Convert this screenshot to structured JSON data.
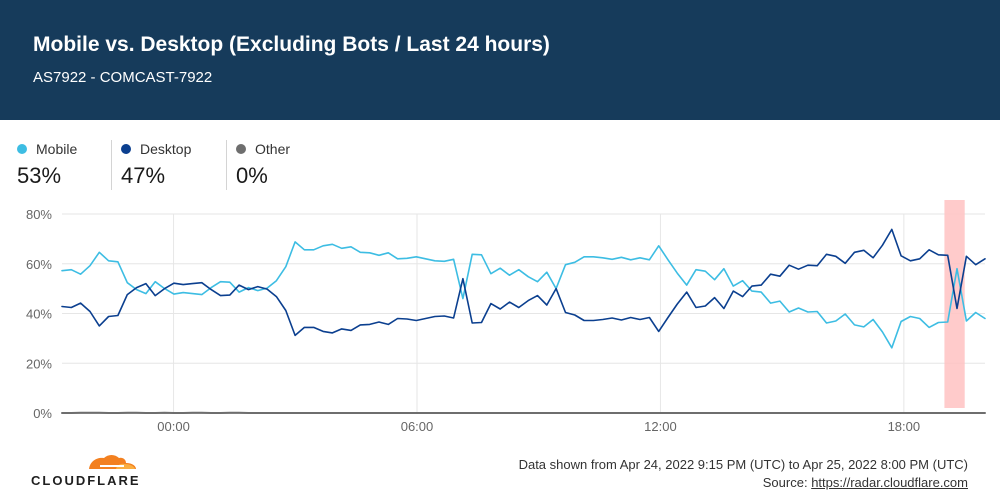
{
  "header": {
    "title": "Mobile vs. Desktop (Excluding Bots / Last 24 hours)",
    "subtitle": "AS7922 - COMCAST-7922"
  },
  "legend": [
    {
      "name": "Mobile",
      "value": "53%",
      "color": "#3dbde3"
    },
    {
      "name": "Desktop",
      "value": "47%",
      "color": "#0b3f8f"
    },
    {
      "name": "Other",
      "value": "0%",
      "color": "#6e6e6e"
    }
  ],
  "chart_data": {
    "type": "line",
    "x_tick_labels": [
      "00:00",
      "06:00",
      "12:00",
      "18:00"
    ],
    "x_tick_hours": [
      2.75,
      8.75,
      14.75,
      20.75
    ],
    "xlim_hours": [
      0,
      22.75
    ],
    "y_tick_labels": [
      "0%",
      "20%",
      "40%",
      "60%",
      "80%"
    ],
    "y_ticks": [
      0,
      20,
      40,
      60,
      80
    ],
    "ylim": [
      0,
      80
    ],
    "grid": true,
    "highlight_hours": [
      21.75,
      22.25
    ],
    "highlight_color": "#ffc2c2",
    "series": [
      {
        "name": "Mobile",
        "color": "#3dbde3",
        "values": [
          57.2,
          57.6,
          55.8,
          59.2,
          64.6,
          61.2,
          60.8,
          52.4,
          49.6,
          48.0,
          52.8,
          50.0,
          47.8,
          48.4,
          48.0,
          47.6,
          50.4,
          52.8,
          52.6,
          48.6,
          50.4,
          49.2,
          50.2,
          53.2,
          58.8,
          68.8,
          65.6,
          65.6,
          67.2,
          67.8,
          66.2,
          66.8,
          64.6,
          64.4,
          63.4,
          64.4,
          62.0,
          62.2,
          62.8,
          62.0,
          61.2,
          61.0,
          61.8,
          46.0,
          63.8,
          63.6,
          56.0,
          58.2,
          55.4,
          57.6,
          54.8,
          52.8,
          56.6,
          50.0,
          59.6,
          60.6,
          62.8,
          62.8,
          62.4,
          61.8,
          62.6,
          61.6,
          62.4,
          61.6,
          67.2,
          61.6,
          56.2,
          51.4,
          57.6,
          57.0,
          53.6,
          58.0,
          51.0,
          53.2,
          49.0,
          48.6,
          44.2,
          45.0,
          40.6,
          42.2,
          40.6,
          40.8,
          36.2,
          37.0,
          39.8,
          35.4,
          34.6,
          37.6,
          32.6,
          26.2,
          36.8,
          38.8,
          38.0,
          34.4,
          36.4,
          36.6,
          58.0,
          37.0,
          40.4,
          38.0
        ]
      },
      {
        "name": "Desktop",
        "color": "#0b3f8f",
        "values": [
          42.8,
          42.4,
          44.2,
          40.8,
          35.0,
          38.8,
          39.2,
          47.6,
          50.4,
          52.0,
          47.2,
          50.0,
          52.2,
          51.6,
          52.0,
          52.4,
          49.6,
          47.2,
          47.4,
          51.4,
          49.6,
          50.8,
          49.8,
          46.8,
          41.2,
          31.2,
          34.4,
          34.4,
          32.8,
          32.2,
          33.8,
          33.2,
          35.4,
          35.6,
          36.6,
          35.6,
          38.0,
          37.8,
          37.2,
          38.0,
          38.8,
          39.0,
          38.2,
          54.0,
          36.2,
          36.4,
          44.0,
          41.8,
          44.6,
          42.4,
          45.2,
          47.2,
          43.4,
          50.0,
          40.4,
          39.4,
          37.2,
          37.2,
          37.6,
          38.2,
          37.4,
          38.4,
          37.6,
          38.4,
          32.8,
          38.4,
          43.8,
          48.6,
          42.4,
          43.0,
          46.4,
          42.0,
          49.0,
          46.8,
          51.0,
          51.4,
          55.8,
          55.0,
          59.4,
          57.8,
          59.4,
          59.2,
          63.8,
          63.0,
          60.2,
          64.6,
          65.4,
          62.4,
          67.4,
          73.8,
          63.2,
          61.2,
          62.0,
          65.6,
          63.6,
          63.4,
          42.0,
          63.0,
          59.6,
          62.0
        ]
      },
      {
        "name": "Other",
        "color": "#6e6e6e",
        "values": [
          0.0,
          0.0,
          0.1,
          0.1,
          0.1,
          0.0,
          0.0,
          0.1,
          0.1,
          0.0,
          0.0,
          0.1,
          0.0,
          0.0,
          0.1,
          0.1,
          0.0,
          0.0,
          0.1,
          0.1,
          0.0,
          0.0,
          0.0,
          0.0,
          0.0,
          0.0,
          0.0,
          0.0,
          0.0,
          0.0,
          0.0,
          0.0,
          0.0,
          0.0,
          0.0,
          0.0,
          0.0,
          0.0,
          0.0,
          0.0,
          0.0,
          0.0,
          0.0,
          0.0,
          0.0,
          0.0,
          0.0,
          0.0,
          0.0,
          0.0,
          0.0,
          0.0,
          0.0,
          0.0,
          0.0,
          0.0,
          0.0,
          0.0,
          0.0,
          0.0,
          0.0,
          0.0,
          0.0,
          0.0,
          0.0,
          0.0,
          0.0,
          0.0,
          0.0,
          0.0,
          0.0,
          0.0,
          0.0,
          0.0,
          0.0,
          0.0,
          0.0,
          0.0,
          0.0,
          0.0,
          0.0,
          0.0,
          0.0,
          0.0,
          0.0,
          0.0,
          0.0,
          0.0,
          0.0,
          0.0,
          0.0,
          0.0,
          0.0,
          0.0,
          0.0,
          0.0,
          0.0,
          0.0,
          0.0,
          0.0
        ]
      }
    ]
  },
  "footer": {
    "brand": "CLOUDFLARE",
    "range_text": "Data shown from Apr 24, 2022 9:15 PM (UTC) to Apr 25, 2022 8:00 PM (UTC)",
    "source_label": "Source:",
    "source_link": "https://radar.cloudflare.com"
  }
}
